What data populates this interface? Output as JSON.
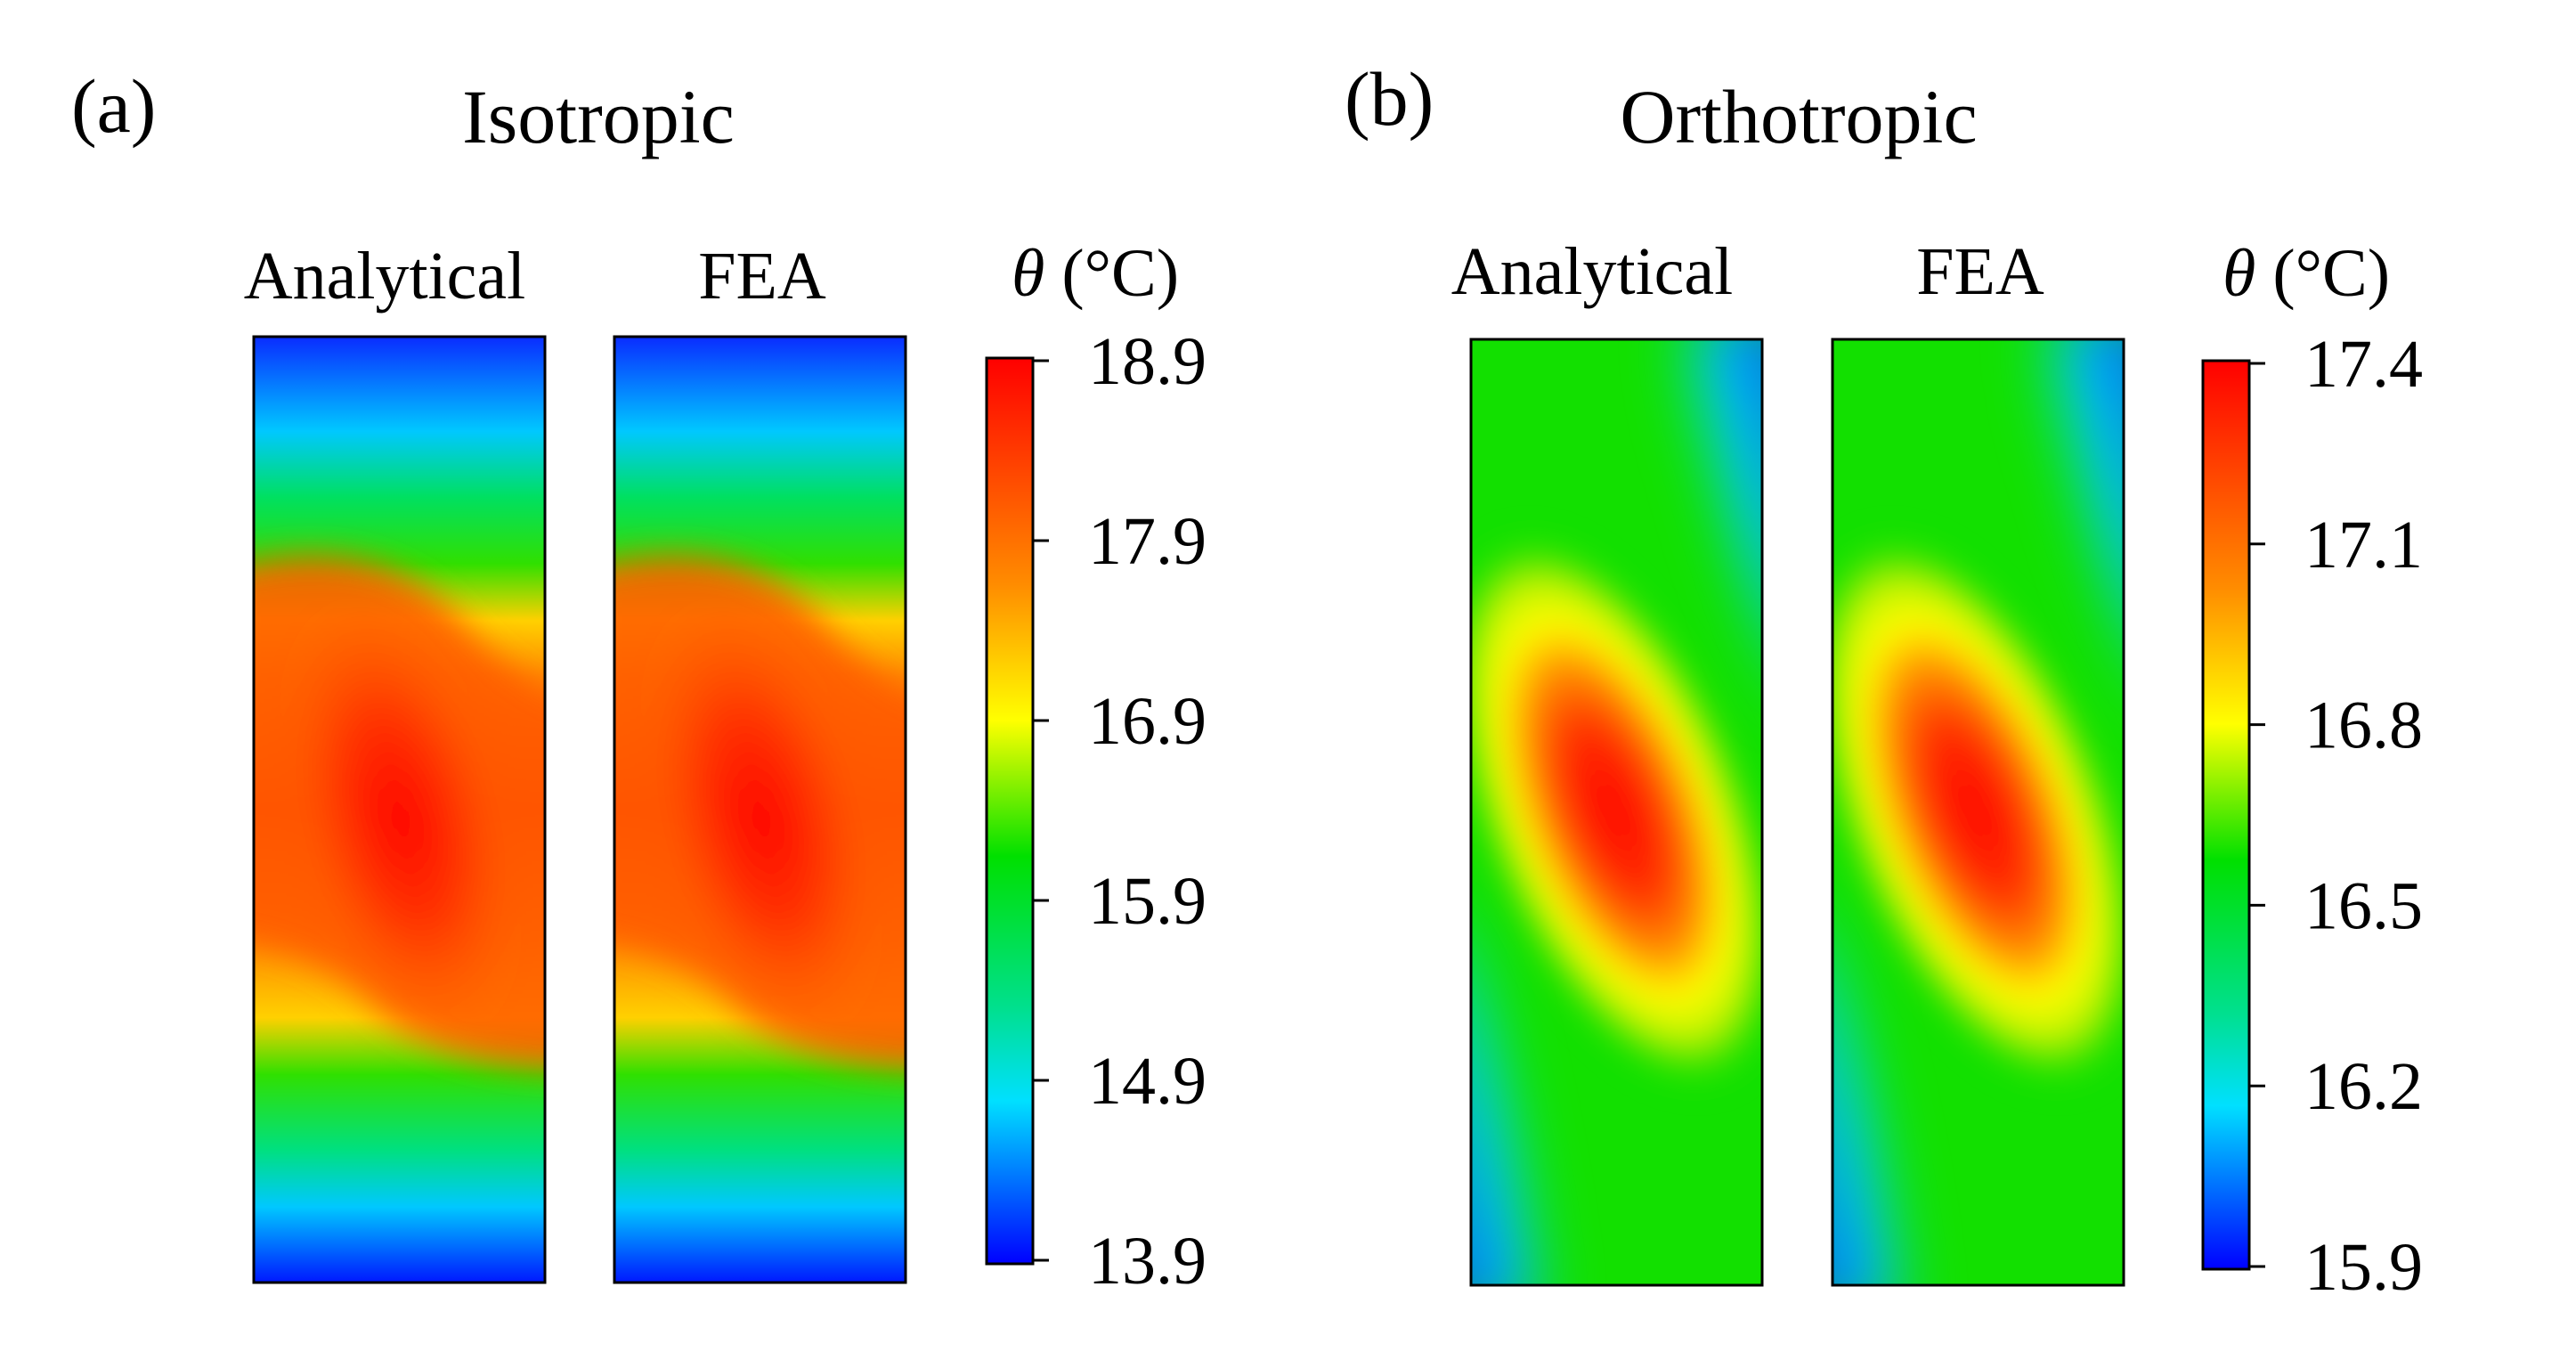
{
  "panels": [
    {
      "label": "(a)",
      "title": "Isotropic",
      "maps": [
        {
          "label": "Analytical"
        },
        {
          "label": "FEA"
        }
      ],
      "colorbar": {
        "title_symbol": "θ",
        "title_unit": " (°C)",
        "min": 13.9,
        "max": 18.9,
        "ticks": [
          "18.9",
          "17.9",
          "16.9",
          "15.9",
          "14.9",
          "13.9"
        ]
      }
    },
    {
      "label": "(b)",
      "title": "Orthotropic",
      "maps": [
        {
          "label": "Analytical"
        },
        {
          "label": "FEA"
        }
      ],
      "colorbar": {
        "title_symbol": "θ",
        "title_unit": " (°C)",
        "min": 15.9,
        "max": 17.4,
        "ticks": [
          "17.4",
          "17.1",
          "16.8",
          "16.5",
          "16.2",
          "15.9"
        ]
      }
    }
  ],
  "colormap": [
    "#0000ff",
    "#00ffff",
    "#00ff00",
    "#ffff00",
    "#ff0000"
  ]
}
